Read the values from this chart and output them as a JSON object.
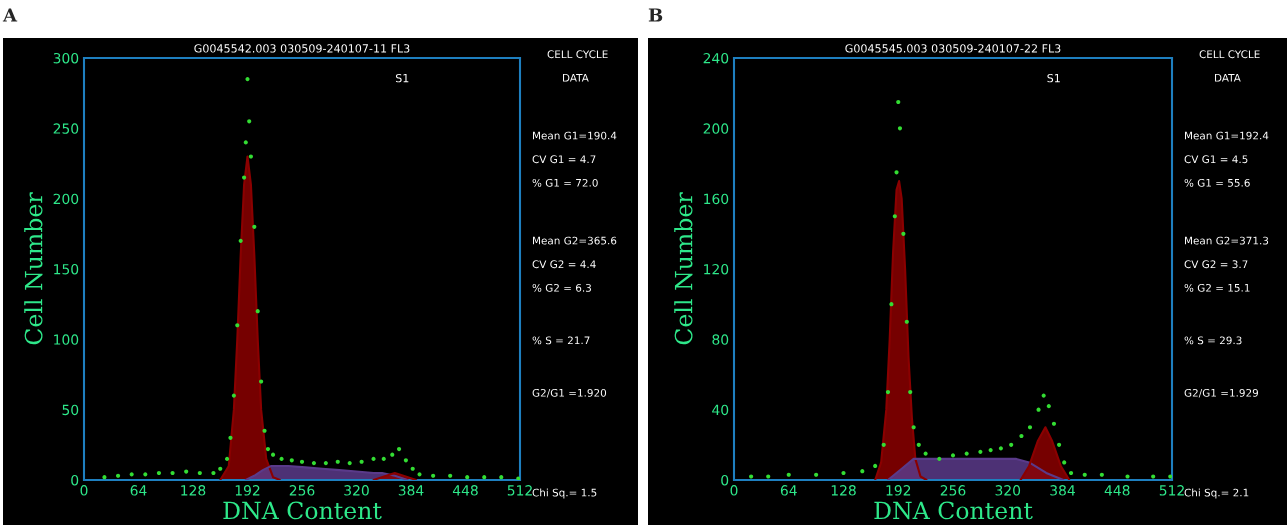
{
  "chart_data": [
    {
      "type": "area",
      "title": "G0045542.003 030509-240107-11 FL3",
      "xlabel": "DNA Content",
      "ylabel": "Cell Number",
      "xlim": [
        0,
        512
      ],
      "xticks": [
        0,
        64,
        128,
        192,
        256,
        320,
        384,
        448,
        512
      ],
      "ylim": [
        0,
        300
      ],
      "yticks": [
        0,
        50,
        100,
        150,
        200,
        250,
        300
      ],
      "grid": false,
      "annotations": [
        "A",
        "S1",
        "CELL CYCLE",
        "DATA",
        "Mean G1=190.4",
        "CV G1 = 4.7",
        "% G1 = 72.0",
        "Mean G2=365.6",
        "CV G2 = 4.4",
        "% G2 = 6.3",
        "% S = 21.7",
        "G2/G1 =1.920",
        "Chi Sq.= 1.5"
      ],
      "series": [
        {
          "color": "#8b0000",
          "x": [
            160,
            170,
            176,
            180,
            184,
            188,
            192,
            196,
            200,
            204,
            208,
            214,
            222,
            230
          ],
          "values": [
            0,
            10,
            50,
            100,
            160,
            210,
            230,
            210,
            160,
            100,
            50,
            15,
            2,
            0
          ]
        },
        {
          "color": "#5a3a8a",
          "x": [
            190,
            200,
            210,
            220,
            240,
            260,
            280,
            300,
            320,
            340,
            350,
            365,
            380
          ],
          "values": [
            0,
            3,
            7,
            10,
            10,
            9,
            8,
            7,
            6,
            5,
            5,
            3,
            0
          ]
        },
        {
          "color": "#8b0000",
          "x": [
            340,
            355,
            365,
            375,
            390
          ],
          "values": [
            0,
            3,
            5,
            3,
            0
          ]
        },
        {
          "type": "scatter",
          "color": "#33dd33",
          "x": [
            24,
            40,
            56,
            72,
            88,
            104,
            120,
            136,
            152,
            160,
            168,
            172,
            176,
            180,
            184,
            188,
            190,
            192,
            194,
            196,
            200,
            204,
            208,
            212,
            216,
            222,
            232,
            244,
            256,
            270,
            284,
            298,
            312,
            326,
            340,
            352,
            362,
            370,
            378,
            386,
            394,
            410,
            430,
            450,
            470,
            490,
            510
          ],
          "values": [
            2,
            3,
            4,
            4,
            5,
            5,
            6,
            5,
            5,
            8,
            15,
            30,
            60,
            110,
            170,
            215,
            240,
            285,
            255,
            230,
            180,
            120,
            70,
            35,
            22,
            18,
            15,
            14,
            13,
            12,
            12,
            13,
            12,
            13,
            15,
            15,
            18,
            22,
            14,
            8,
            4,
            3,
            3,
            2,
            2,
            2,
            1
          ]
        }
      ]
    },
    {
      "type": "area",
      "title": "G0045545.003 030509-240107-22 FL3",
      "xlabel": "DNA Content",
      "ylabel": "Cell Number",
      "xlim": [
        0,
        512
      ],
      "xticks": [
        0,
        64,
        128,
        192,
        256,
        320,
        384,
        448,
        512
      ],
      "ylim": [
        0,
        240
      ],
      "yticks": [
        0,
        40,
        80,
        120,
        160,
        200,
        240
      ],
      "grid": false,
      "annotations": [
        "B",
        "S1",
        "CELL CYCLE",
        "DATA",
        "Mean G1=192.4",
        "CV G1 = 4.5",
        "% G1 = 55.6",
        "Mean G2=371.3",
        "CV G2 = 3.7",
        "% G2 = 15.1",
        "% S = 29.3",
        "G2/G1 =1.929",
        "Chi Sq.= 2.1"
      ],
      "series": [
        {
          "color": "#8b0000",
          "x": [
            165,
            172,
            178,
            182,
            186,
            190,
            193,
            196,
            200,
            204,
            208,
            212,
            218,
            225
          ],
          "values": [
            0,
            10,
            40,
            80,
            130,
            165,
            170,
            160,
            120,
            70,
            35,
            12,
            2,
            0
          ]
        },
        {
          "color": "#5a3a8a",
          "x": [
            180,
            195,
            210,
            230,
            260,
            290,
            330,
            345,
            365,
            385
          ],
          "values": [
            0,
            6,
            12,
            12,
            12,
            12,
            12,
            10,
            4,
            0
          ]
        },
        {
          "color": "#8b0000",
          "x": [
            335,
            345,
            355,
            364,
            372,
            382,
            392
          ],
          "values": [
            0,
            8,
            22,
            30,
            22,
            8,
            0
          ]
        },
        {
          "type": "scatter",
          "color": "#33dd33",
          "x": [
            20,
            40,
            64,
            96,
            128,
            150,
            165,
            175,
            180,
            184,
            188,
            190,
            192,
            194,
            198,
            202,
            206,
            210,
            216,
            224,
            240,
            256,
            272,
            288,
            300,
            312,
            324,
            336,
            346,
            356,
            362,
            368,
            374,
            380,
            386,
            394,
            410,
            430,
            460,
            490,
            510
          ],
          "values": [
            2,
            2,
            3,
            3,
            4,
            5,
            8,
            20,
            50,
            100,
            150,
            175,
            215,
            200,
            140,
            90,
            50,
            30,
            20,
            15,
            12,
            14,
            15,
            16,
            17,
            18,
            20,
            25,
            30,
            40,
            48,
            42,
            32,
            20,
            10,
            4,
            3,
            3,
            2,
            2,
            2
          ]
        }
      ]
    }
  ]
}
